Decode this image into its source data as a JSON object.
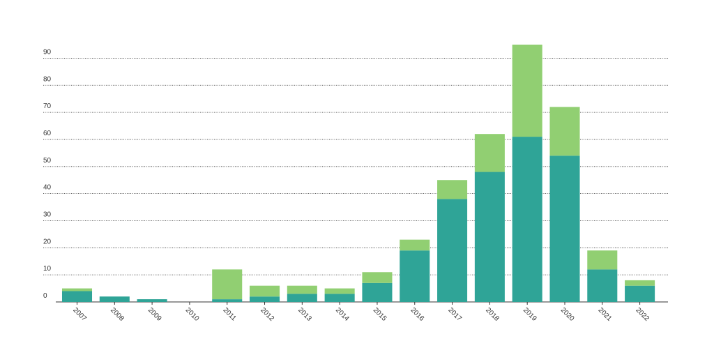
{
  "chart_data": {
    "type": "stacked-bar",
    "categories": [
      "2007",
      "2008",
      "2009",
      "2010",
      "2011",
      "2012",
      "2013",
      "2014",
      "2015",
      "2016",
      "2017",
      "2018",
      "2019",
      "2020",
      "2021",
      "2022"
    ],
    "series": [
      {
        "color": "#2fa497",
        "values": [
          4,
          2,
          1,
          0,
          1,
          2,
          3,
          3,
          7,
          19,
          38,
          48,
          61,
          54,
          12,
          6
        ]
      },
      {
        "color": "#91cf72",
        "values": [
          1,
          0,
          0,
          0,
          11,
          4,
          3,
          2,
          4,
          4,
          7,
          14,
          34,
          18,
          7,
          2
        ]
      }
    ],
    "ylim": [
      0,
      95
    ],
    "yticks": [
      0,
      10,
      20,
      30,
      40,
      50,
      60,
      70,
      80,
      90
    ],
    "grid": true
  }
}
